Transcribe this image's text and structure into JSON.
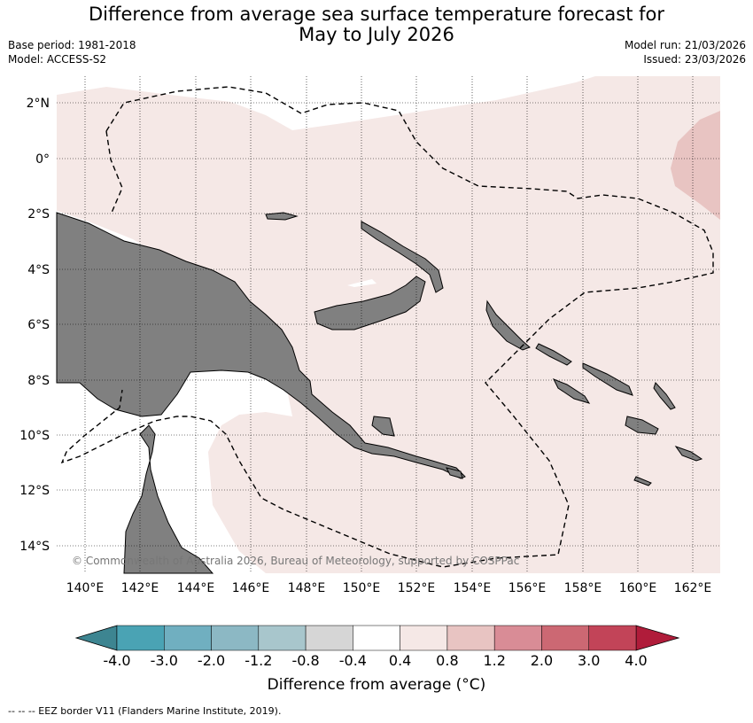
{
  "title_line1": "Difference from average sea surface temperature forecast for",
  "title_line2": "May to July 2026",
  "base_period": "Base period: 1981-2018",
  "model": "Model: ACCESS-S2",
  "model_run": "Model run: 21/03/2026",
  "issued": "Issued: 23/03/2026",
  "copyright": "© Commonwealth of Australia 2026, Bureau of Meteorology, supported by COSPPac",
  "lat_labels": [
    "2°N",
    "0°",
    "2°S",
    "4°S",
    "6°S",
    "8°S",
    "10°S",
    "12°S",
    "14°S"
  ],
  "lon_labels": [
    "140°E",
    "142°E",
    "144°E",
    "146°E",
    "148°E",
    "150°E",
    "152°E",
    "154°E",
    "156°E",
    "158°E",
    "160°E",
    "162°E"
  ],
  "colorbar": {
    "title": "Difference from average (°C)",
    "ticks": [
      "-4.0",
      "-3.0",
      "-2.0",
      "-1.2",
      "-0.8",
      "-0.4",
      "0.4",
      "0.8",
      "1.2",
      "2.0",
      "3.0",
      "4.0"
    ],
    "under_color": "#3d8591",
    "over_color": "#b01c3a",
    "colors": [
      "#4aa3b4",
      "#70afc0",
      "#8cb8c4",
      "#a8c6cc",
      "#d6d6d6",
      "#ffffff",
      "#f5e8e6",
      "#e8c4c2",
      "#d98c96",
      "#cc6873",
      "#c24458"
    ]
  },
  "footer": "--  --  -- EEZ border V11 (Flanders Marine Institute, 2019)."
}
